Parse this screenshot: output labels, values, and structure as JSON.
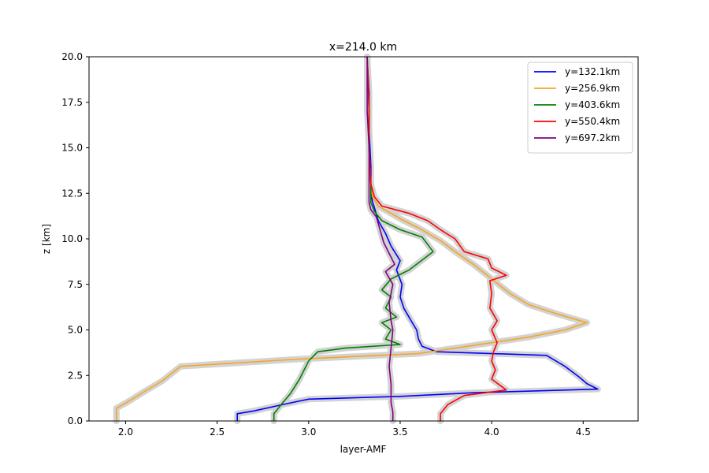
{
  "chart_data": {
    "type": "line",
    "title": "x=214.0 km",
    "xlabel": "layer-AMF",
    "ylabel": "z [km]",
    "xlim": [
      1.8,
      4.8
    ],
    "ylim": [
      0,
      20
    ],
    "xticks": [
      "2.0",
      "2.5",
      "3.0",
      "3.5",
      "4.0",
      "4.5"
    ],
    "yticks": [
      "0.0",
      "2.5",
      "5.0",
      "7.5",
      "10.0",
      "12.5",
      "15.0",
      "17.5",
      "20.0"
    ],
    "grid": false,
    "legend_position": "upper-right",
    "uncertainty_band_color": "#d3d3d3",
    "series": [
      {
        "name": "y=132.1km",
        "color": "#0000ff",
        "points": [
          [
            2.61,
            0.0
          ],
          [
            2.61,
            0.4
          ],
          [
            2.7,
            0.55
          ],
          [
            2.88,
            0.95
          ],
          [
            3.0,
            1.2
          ],
          [
            3.5,
            1.35
          ],
          [
            3.9,
            1.55
          ],
          [
            4.58,
            1.75
          ],
          [
            4.52,
            2.05
          ],
          [
            4.48,
            2.4
          ],
          [
            4.4,
            3.0
          ],
          [
            4.3,
            3.6
          ],
          [
            3.7,
            3.8
          ],
          [
            3.62,
            4.1
          ],
          [
            3.6,
            4.5
          ],
          [
            3.59,
            5.0
          ],
          [
            3.56,
            5.5
          ],
          [
            3.52,
            6.2
          ],
          [
            3.5,
            6.8
          ],
          [
            3.51,
            7.5
          ],
          [
            3.48,
            8.3
          ],
          [
            3.5,
            8.8
          ],
          [
            3.45,
            9.6
          ],
          [
            3.42,
            10.3
          ],
          [
            3.38,
            11.0
          ],
          [
            3.36,
            11.7
          ],
          [
            3.35,
            12.0
          ],
          [
            3.34,
            12.5
          ],
          [
            3.34,
            14.0
          ],
          [
            3.33,
            16.0
          ],
          [
            3.33,
            18.0
          ],
          [
            3.32,
            20.0
          ]
        ]
      },
      {
        "name": "y=256.9km",
        "color": "#f5a623",
        "points": [
          [
            1.95,
            0.0
          ],
          [
            1.95,
            0.7
          ],
          [
            2.02,
            1.1
          ],
          [
            2.1,
            1.6
          ],
          [
            2.2,
            2.2
          ],
          [
            2.3,
            3.0
          ],
          [
            2.95,
            3.4
          ],
          [
            3.6,
            3.7
          ],
          [
            4.0,
            4.3
          ],
          [
            4.2,
            4.6
          ],
          [
            4.4,
            5.0
          ],
          [
            4.52,
            5.4
          ],
          [
            4.35,
            5.9
          ],
          [
            4.2,
            6.4
          ],
          [
            4.1,
            7.0
          ],
          [
            4.0,
            7.8
          ],
          [
            3.9,
            8.6
          ],
          [
            3.8,
            9.3
          ],
          [
            3.72,
            9.9
          ],
          [
            3.6,
            10.6
          ],
          [
            3.52,
            11.0
          ],
          [
            3.45,
            11.4
          ],
          [
            3.38,
            11.8
          ],
          [
            3.35,
            12.3
          ],
          [
            3.34,
            13.0
          ],
          [
            3.33,
            15.0
          ],
          [
            3.33,
            17.0
          ],
          [
            3.32,
            20.0
          ]
        ]
      },
      {
        "name": "y=403.6km",
        "color": "#008000",
        "points": [
          [
            2.81,
            0.0
          ],
          [
            2.81,
            0.4
          ],
          [
            2.85,
            0.9
          ],
          [
            2.9,
            1.5
          ],
          [
            2.95,
            2.3
          ],
          [
            3.0,
            3.3
          ],
          [
            3.05,
            3.8
          ],
          [
            3.2,
            4.0
          ],
          [
            3.5,
            4.2
          ],
          [
            3.42,
            4.5
          ],
          [
            3.45,
            5.0
          ],
          [
            3.4,
            5.4
          ],
          [
            3.48,
            5.7
          ],
          [
            3.42,
            6.2
          ],
          [
            3.45,
            6.8
          ],
          [
            3.4,
            7.2
          ],
          [
            3.45,
            7.8
          ],
          [
            3.55,
            8.3
          ],
          [
            3.68,
            9.3
          ],
          [
            3.62,
            10.1
          ],
          [
            3.5,
            10.5
          ],
          [
            3.4,
            11.0
          ],
          [
            3.36,
            11.5
          ],
          [
            3.34,
            12.0
          ],
          [
            3.34,
            13.0
          ],
          [
            3.33,
            15.0
          ],
          [
            3.33,
            17.0
          ],
          [
            3.32,
            20.0
          ]
        ]
      },
      {
        "name": "y=550.4km",
        "color": "#ff0000",
        "points": [
          [
            3.72,
            0.0
          ],
          [
            3.72,
            0.4
          ],
          [
            3.76,
            0.9
          ],
          [
            3.85,
            1.4
          ],
          [
            4.08,
            1.7
          ],
          [
            4.0,
            2.3
          ],
          [
            4.02,
            2.8
          ],
          [
            4.0,
            3.3
          ],
          [
            4.01,
            3.8
          ],
          [
            4.03,
            4.3
          ],
          [
            4.0,
            5.0
          ],
          [
            4.03,
            5.5
          ],
          [
            3.99,
            6.2
          ],
          [
            4.0,
            7.0
          ],
          [
            3.99,
            7.7
          ],
          [
            4.08,
            8.0
          ],
          [
            4.0,
            8.4
          ],
          [
            3.98,
            8.9
          ],
          [
            3.85,
            9.3
          ],
          [
            3.8,
            10.0
          ],
          [
            3.72,
            10.5
          ],
          [
            3.65,
            11.0
          ],
          [
            3.55,
            11.4
          ],
          [
            3.4,
            11.8
          ],
          [
            3.36,
            12.3
          ],
          [
            3.34,
            13.0
          ],
          [
            3.33,
            15.0
          ],
          [
            3.33,
            17.0
          ],
          [
            3.32,
            20.0
          ]
        ]
      },
      {
        "name": "y=697.2km",
        "color": "#800080",
        "points": [
          [
            3.46,
            0.0
          ],
          [
            3.46,
            0.5
          ],
          [
            3.45,
            1.0
          ],
          [
            3.45,
            2.0
          ],
          [
            3.44,
            3.0
          ],
          [
            3.45,
            4.0
          ],
          [
            3.46,
            5.0
          ],
          [
            3.45,
            5.5
          ],
          [
            3.44,
            6.5
          ],
          [
            3.46,
            7.5
          ],
          [
            3.42,
            8.2
          ],
          [
            3.47,
            8.6
          ],
          [
            3.44,
            9.2
          ],
          [
            3.41,
            9.8
          ],
          [
            3.39,
            10.5
          ],
          [
            3.37,
            11.2
          ],
          [
            3.34,
            11.6
          ],
          [
            3.33,
            12.0
          ],
          [
            3.33,
            13.0
          ],
          [
            3.33,
            15.0
          ],
          [
            3.32,
            17.0
          ],
          [
            3.32,
            20.0
          ]
        ]
      }
    ]
  }
}
